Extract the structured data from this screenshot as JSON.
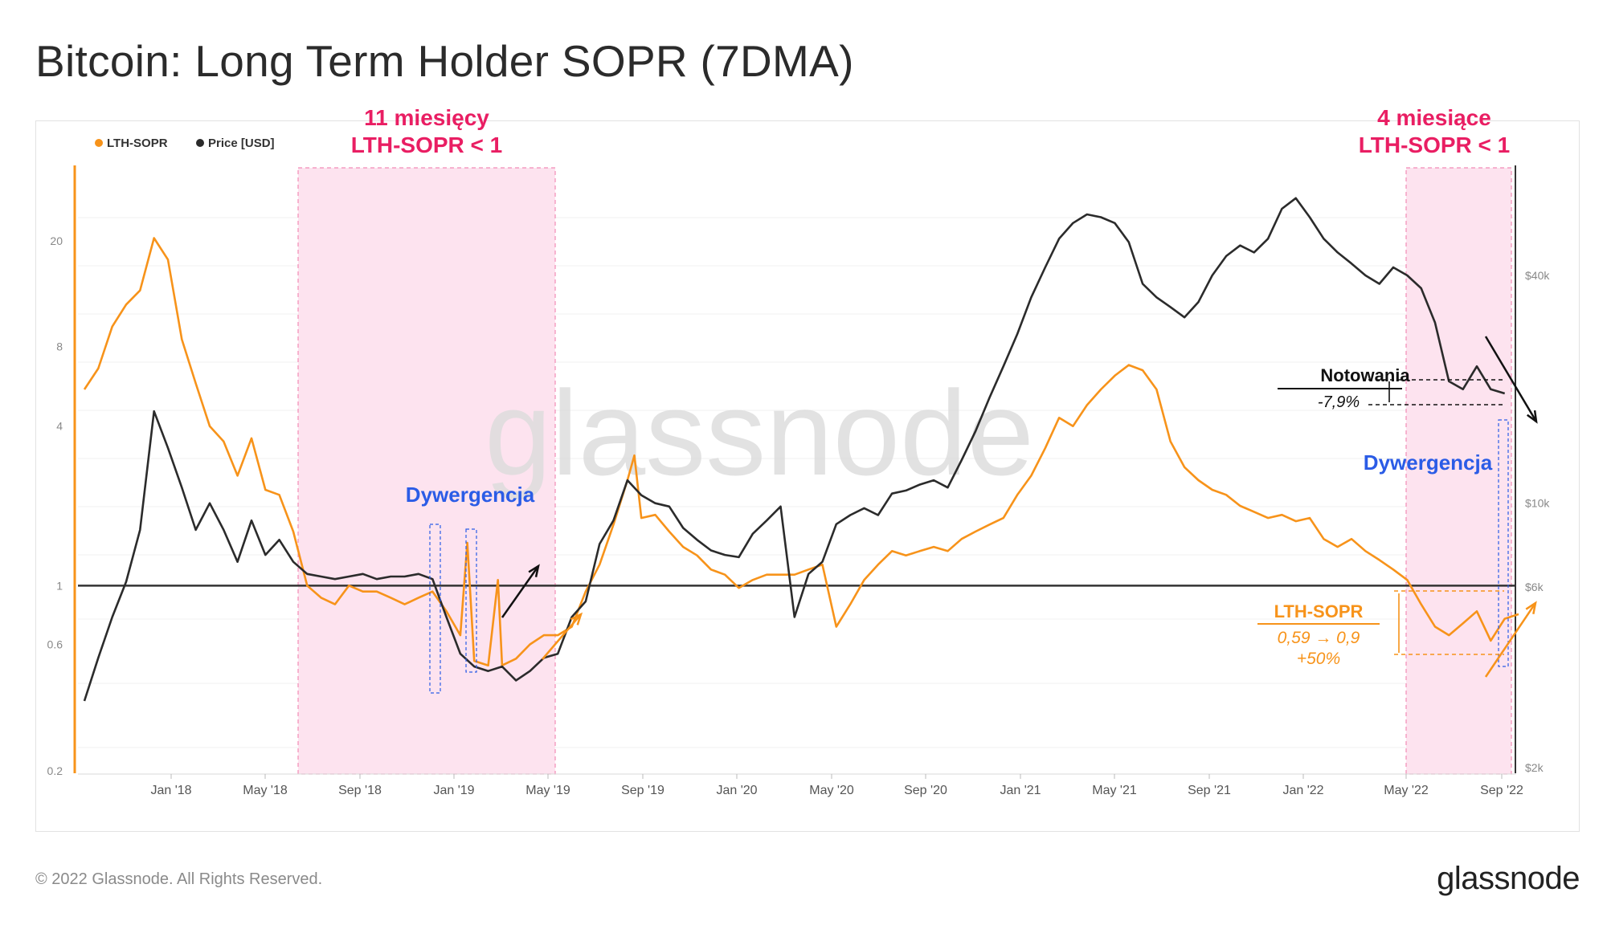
{
  "page": {
    "title": "Bitcoin: Long Term Holder SOPR (7DMA)",
    "copyright": "© 2022 Glassnode. All Rights Reserved.",
    "brand": "glassnode",
    "watermark": "glassnode"
  },
  "chart_data": {
    "type": "line",
    "title": "Bitcoin: Long Term Holder SOPR (7DMA)",
    "legend": [
      {
        "name": "LTH-SOPR",
        "color": "#f7931a"
      },
      {
        "name": "Price [USD]",
        "color": "#2b2b2b"
      }
    ],
    "legend_position": "top-left",
    "x_ticks": [
      "Jan '18",
      "May '18",
      "Sep '18",
      "Jan '19",
      "May '19",
      "Sep '19",
      "Jan '20",
      "May '20",
      "Sep '20",
      "Jan '21",
      "May '21",
      "Sep '21",
      "Jan '22",
      "May '22",
      "Sep '22"
    ],
    "x_range": [
      "Sep '17",
      "Oct '22"
    ],
    "y_left": {
      "label": "LTH-SOPR",
      "scale": "log",
      "ticks": [
        "0.2",
        "0.6",
        "1",
        "4",
        "8",
        "20"
      ],
      "tick_values": [
        0.2,
        0.6,
        1,
        4,
        8,
        20
      ]
    },
    "y_right": {
      "label": "Price [USD]",
      "scale": "log",
      "ticks": [
        "$2k",
        "$6k",
        "$10k",
        "$40k"
      ],
      "tick_values": [
        2000,
        6000,
        10000,
        40000
      ]
    },
    "reference_line": {
      "axis": "left",
      "value": 1
    },
    "series": [
      {
        "name": "LTH-SOPR",
        "axis": "left",
        "color": "#f7931a",
        "points": [
          [
            0,
            5.5
          ],
          [
            1,
            6.6
          ],
          [
            2,
            9.5
          ],
          [
            3,
            11.5
          ],
          [
            4,
            13.0
          ],
          [
            5,
            20.5
          ],
          [
            6,
            17.0
          ],
          [
            7,
            8.5
          ],
          [
            8,
            5.8
          ],
          [
            9,
            4.0
          ],
          [
            10,
            3.5
          ],
          [
            11,
            2.6
          ],
          [
            12,
            3.6
          ],
          [
            13,
            2.3
          ],
          [
            14,
            2.2
          ],
          [
            15,
            1.6
          ],
          [
            16,
            1.0
          ],
          [
            17,
            0.9
          ],
          [
            18,
            0.85
          ],
          [
            19,
            1.0
          ],
          [
            20,
            0.95
          ],
          [
            21,
            0.95
          ],
          [
            22,
            0.9
          ],
          [
            23,
            0.85
          ],
          [
            24,
            0.9
          ],
          [
            25,
            0.95
          ],
          [
            26,
            0.8
          ],
          [
            27,
            0.65
          ],
          [
            27.5,
            1.45
          ],
          [
            28,
            0.52
          ],
          [
            29,
            0.5
          ],
          [
            29.7,
            1.05
          ],
          [
            30,
            0.5
          ],
          [
            31,
            0.53
          ],
          [
            32,
            0.6
          ],
          [
            33,
            0.65
          ],
          [
            34,
            0.65
          ],
          [
            35,
            0.7
          ],
          [
            36,
            0.95
          ],
          [
            37,
            1.2
          ],
          [
            38,
            1.7
          ],
          [
            39,
            2.5
          ],
          [
            39.5,
            3.1
          ],
          [
            40,
            1.8
          ],
          [
            41,
            1.85
          ],
          [
            42,
            1.6
          ],
          [
            43,
            1.4
          ],
          [
            44,
            1.3
          ],
          [
            45,
            1.15
          ],
          [
            46,
            1.1
          ],
          [
            47,
            0.98
          ],
          [
            48,
            1.05
          ],
          [
            49,
            1.1
          ],
          [
            50,
            1.1
          ],
          [
            51,
            1.1
          ],
          [
            52,
            1.15
          ],
          [
            53,
            1.2
          ],
          [
            54,
            0.7
          ],
          [
            55,
            0.85
          ],
          [
            56,
            1.05
          ],
          [
            57,
            1.2
          ],
          [
            58,
            1.35
          ],
          [
            59,
            1.3
          ],
          [
            60,
            1.35
          ],
          [
            61,
            1.4
          ],
          [
            62,
            1.35
          ],
          [
            63,
            1.5
          ],
          [
            64,
            1.6
          ],
          [
            65,
            1.7
          ],
          [
            66,
            1.8
          ],
          [
            67,
            2.2
          ],
          [
            68,
            2.6
          ],
          [
            69,
            3.3
          ],
          [
            70,
            4.3
          ],
          [
            71,
            4.0
          ],
          [
            72,
            4.8
          ],
          [
            73,
            5.5
          ],
          [
            74,
            6.2
          ],
          [
            75,
            6.8
          ],
          [
            76,
            6.5
          ],
          [
            77,
            5.5
          ],
          [
            78,
            3.5
          ],
          [
            79,
            2.8
          ],
          [
            80,
            2.5
          ],
          [
            81,
            2.3
          ],
          [
            82,
            2.2
          ],
          [
            83,
            2.0
          ],
          [
            84,
            1.9
          ],
          [
            85,
            1.8
          ],
          [
            86,
            1.85
          ],
          [
            87,
            1.75
          ],
          [
            88,
            1.8
          ],
          [
            89,
            1.5
          ],
          [
            90,
            1.4
          ],
          [
            91,
            1.5
          ],
          [
            92,
            1.35
          ],
          [
            93,
            1.25
          ],
          [
            94,
            1.15
          ],
          [
            95,
            1.05
          ],
          [
            96,
            0.85
          ],
          [
            97,
            0.7
          ],
          [
            98,
            0.65
          ],
          [
            99,
            0.72
          ],
          [
            100,
            0.8
          ],
          [
            101,
            0.62
          ],
          [
            102,
            0.75
          ],
          [
            103,
            0.78
          ]
        ]
      },
      {
        "name": "Price [USD]",
        "axis": "right",
        "color": "#2b2b2b",
        "points": [
          [
            0,
            3000
          ],
          [
            1,
            3900
          ],
          [
            2,
            5000
          ],
          [
            3,
            6200
          ],
          [
            4,
            8500
          ],
          [
            5,
            17500
          ],
          [
            6,
            14000
          ],
          [
            7,
            11000
          ],
          [
            8,
            8500
          ],
          [
            9,
            10000
          ],
          [
            10,
            8500
          ],
          [
            11,
            7000
          ],
          [
            12,
            9000
          ],
          [
            13,
            7300
          ],
          [
            14,
            8000
          ],
          [
            15,
            7000
          ],
          [
            16,
            6500
          ],
          [
            17,
            6400
          ],
          [
            18,
            6300
          ],
          [
            19,
            6400
          ],
          [
            20,
            6500
          ],
          [
            21,
            6300
          ],
          [
            22,
            6400
          ],
          [
            23,
            6400
          ],
          [
            24,
            6500
          ],
          [
            25,
            6300
          ],
          [
            26,
            5000
          ],
          [
            27,
            4000
          ],
          [
            28,
            3700
          ],
          [
            29,
            3600
          ],
          [
            30,
            3700
          ],
          [
            31,
            3400
          ],
          [
            32,
            3600
          ],
          [
            33,
            3900
          ],
          [
            34,
            4000
          ],
          [
            35,
            5000
          ],
          [
            36,
            5500
          ],
          [
            37,
            7800
          ],
          [
            38,
            9000
          ],
          [
            39,
            11500
          ],
          [
            40,
            10500
          ],
          [
            41,
            10000
          ],
          [
            42,
            9800
          ],
          [
            43,
            8600
          ],
          [
            44,
            8000
          ],
          [
            45,
            7500
          ],
          [
            46,
            7300
          ],
          [
            47,
            7200
          ],
          [
            48,
            8300
          ],
          [
            49,
            9000
          ],
          [
            50,
            9800
          ],
          [
            51,
            5000
          ],
          [
            52,
            6500
          ],
          [
            53,
            7000
          ],
          [
            54,
            8800
          ],
          [
            55,
            9300
          ],
          [
            56,
            9700
          ],
          [
            57,
            9300
          ],
          [
            58,
            10600
          ],
          [
            59,
            10800
          ],
          [
            60,
            11200
          ],
          [
            61,
            11500
          ],
          [
            62,
            11000
          ],
          [
            63,
            13000
          ],
          [
            64,
            15500
          ],
          [
            65,
            19000
          ],
          [
            66,
            23000
          ],
          [
            67,
            28000
          ],
          [
            68,
            35000
          ],
          [
            69,
            42000
          ],
          [
            70,
            50000
          ],
          [
            71,
            55000
          ],
          [
            72,
            58000
          ],
          [
            73,
            57000
          ],
          [
            74,
            55000
          ],
          [
            75,
            49000
          ],
          [
            76,
            38000
          ],
          [
            77,
            35000
          ],
          [
            78,
            33000
          ],
          [
            79,
            31000
          ],
          [
            80,
            34000
          ],
          [
            81,
            40000
          ],
          [
            82,
            45000
          ],
          [
            83,
            48000
          ],
          [
            84,
            46000
          ],
          [
            85,
            50000
          ],
          [
            86,
            60000
          ],
          [
            87,
            64000
          ],
          [
            88,
            57000
          ],
          [
            89,
            50000
          ],
          [
            90,
            46000
          ],
          [
            91,
            43000
          ],
          [
            92,
            40000
          ],
          [
            93,
            38000
          ],
          [
            94,
            42000
          ],
          [
            95,
            40000
          ],
          [
            96,
            37000
          ],
          [
            97,
            30000
          ],
          [
            98,
            21000
          ],
          [
            99,
            20000
          ],
          [
            100,
            23000
          ],
          [
            101,
            20000
          ],
          [
            102,
            19500
          ]
        ]
      }
    ],
    "x_point_range": [
      0,
      103
    ],
    "shaded_regions": [
      {
        "label_lines": [
          "11 miesięcy",
          "LTH-SOPR < 1"
        ],
        "color": "#fde3ef"
      },
      {
        "label_lines": [
          "4 miesiące",
          "LTH-SOPR < 1"
        ],
        "color": "#fde3ef"
      }
    ],
    "annotations": {
      "divergence_label": "Dywergencja",
      "price_label": "Notowania",
      "price_change": "-7,9%",
      "sopr_label": "LTH-SOPR",
      "sopr_change": "0,59 → 0,9",
      "sopr_pct": "+50%"
    }
  }
}
